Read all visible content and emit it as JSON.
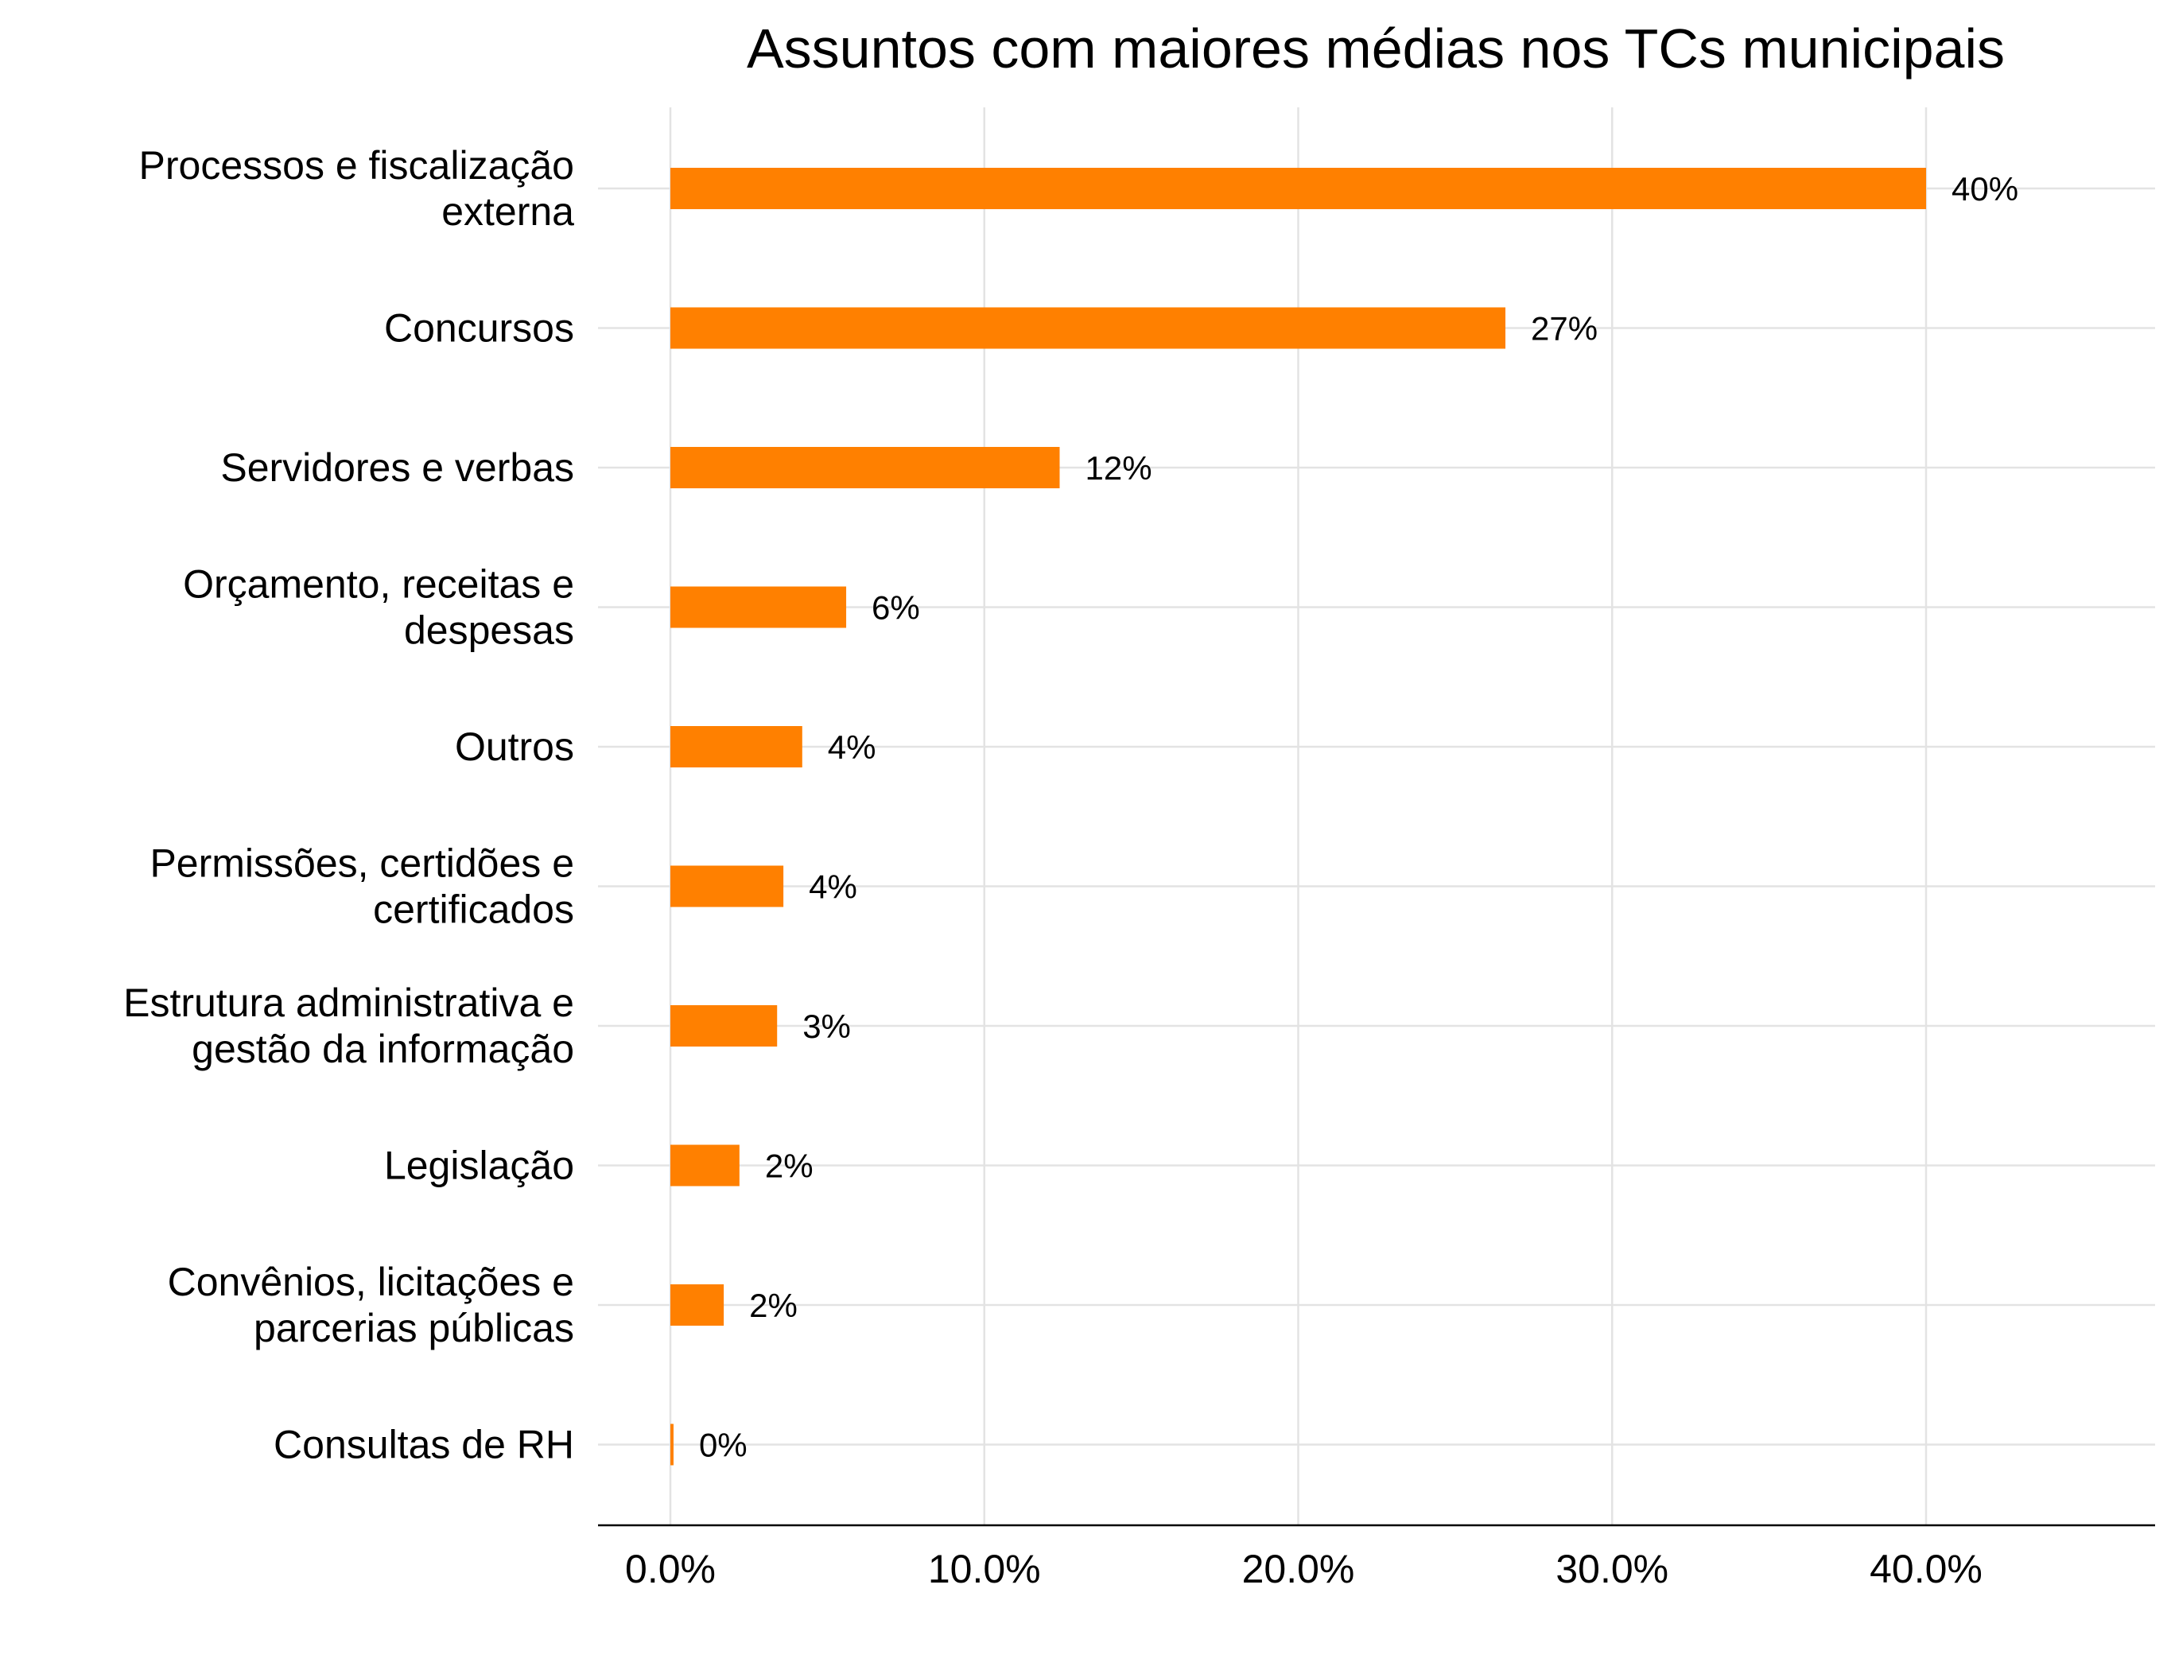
{
  "chart_data": {
    "type": "bar",
    "orientation": "horizontal",
    "title": "Assuntos com maiores médias nos TCs municipais",
    "xlabel": "",
    "ylabel": "",
    "xlim": [
      0,
      47
    ],
    "grid": true,
    "bar_color": "#ff8000",
    "x_ticks": [
      {
        "value": 0,
        "label": "0.0%"
      },
      {
        "value": 10,
        "label": "10.0%"
      },
      {
        "value": 20,
        "label": "20.0%"
      },
      {
        "value": 30,
        "label": "30.0%"
      },
      {
        "value": 40,
        "label": "40.0%"
      }
    ],
    "categories": [
      {
        "lines": [
          "Processos e fiscalização",
          "externa"
        ],
        "value": 40.0,
        "label": "40%"
      },
      {
        "lines": [
          "Concursos"
        ],
        "value": 26.6,
        "label": "27%"
      },
      {
        "lines": [
          "Servidores e verbas"
        ],
        "value": 12.4,
        "label": "12%"
      },
      {
        "lines": [
          "Orçamento, receitas e",
          "despesas"
        ],
        "value": 5.6,
        "label": "6%"
      },
      {
        "lines": [
          "Outros"
        ],
        "value": 4.2,
        "label": "4%"
      },
      {
        "lines": [
          "Permissões, certidões e",
          "certificados"
        ],
        "value": 3.6,
        "label": "4%"
      },
      {
        "lines": [
          "Estrutura administrativa e",
          "gestão da informação"
        ],
        "value": 3.4,
        "label": "3%"
      },
      {
        "lines": [
          "Legislação"
        ],
        "value": 2.2,
        "label": "2%"
      },
      {
        "lines": [
          "Convênios, licitações e",
          "parcerias públicas"
        ],
        "value": 1.7,
        "label": "2%"
      },
      {
        "lines": [
          "Consultas de RH"
        ],
        "value": 0.1,
        "label": "0%"
      }
    ]
  }
}
